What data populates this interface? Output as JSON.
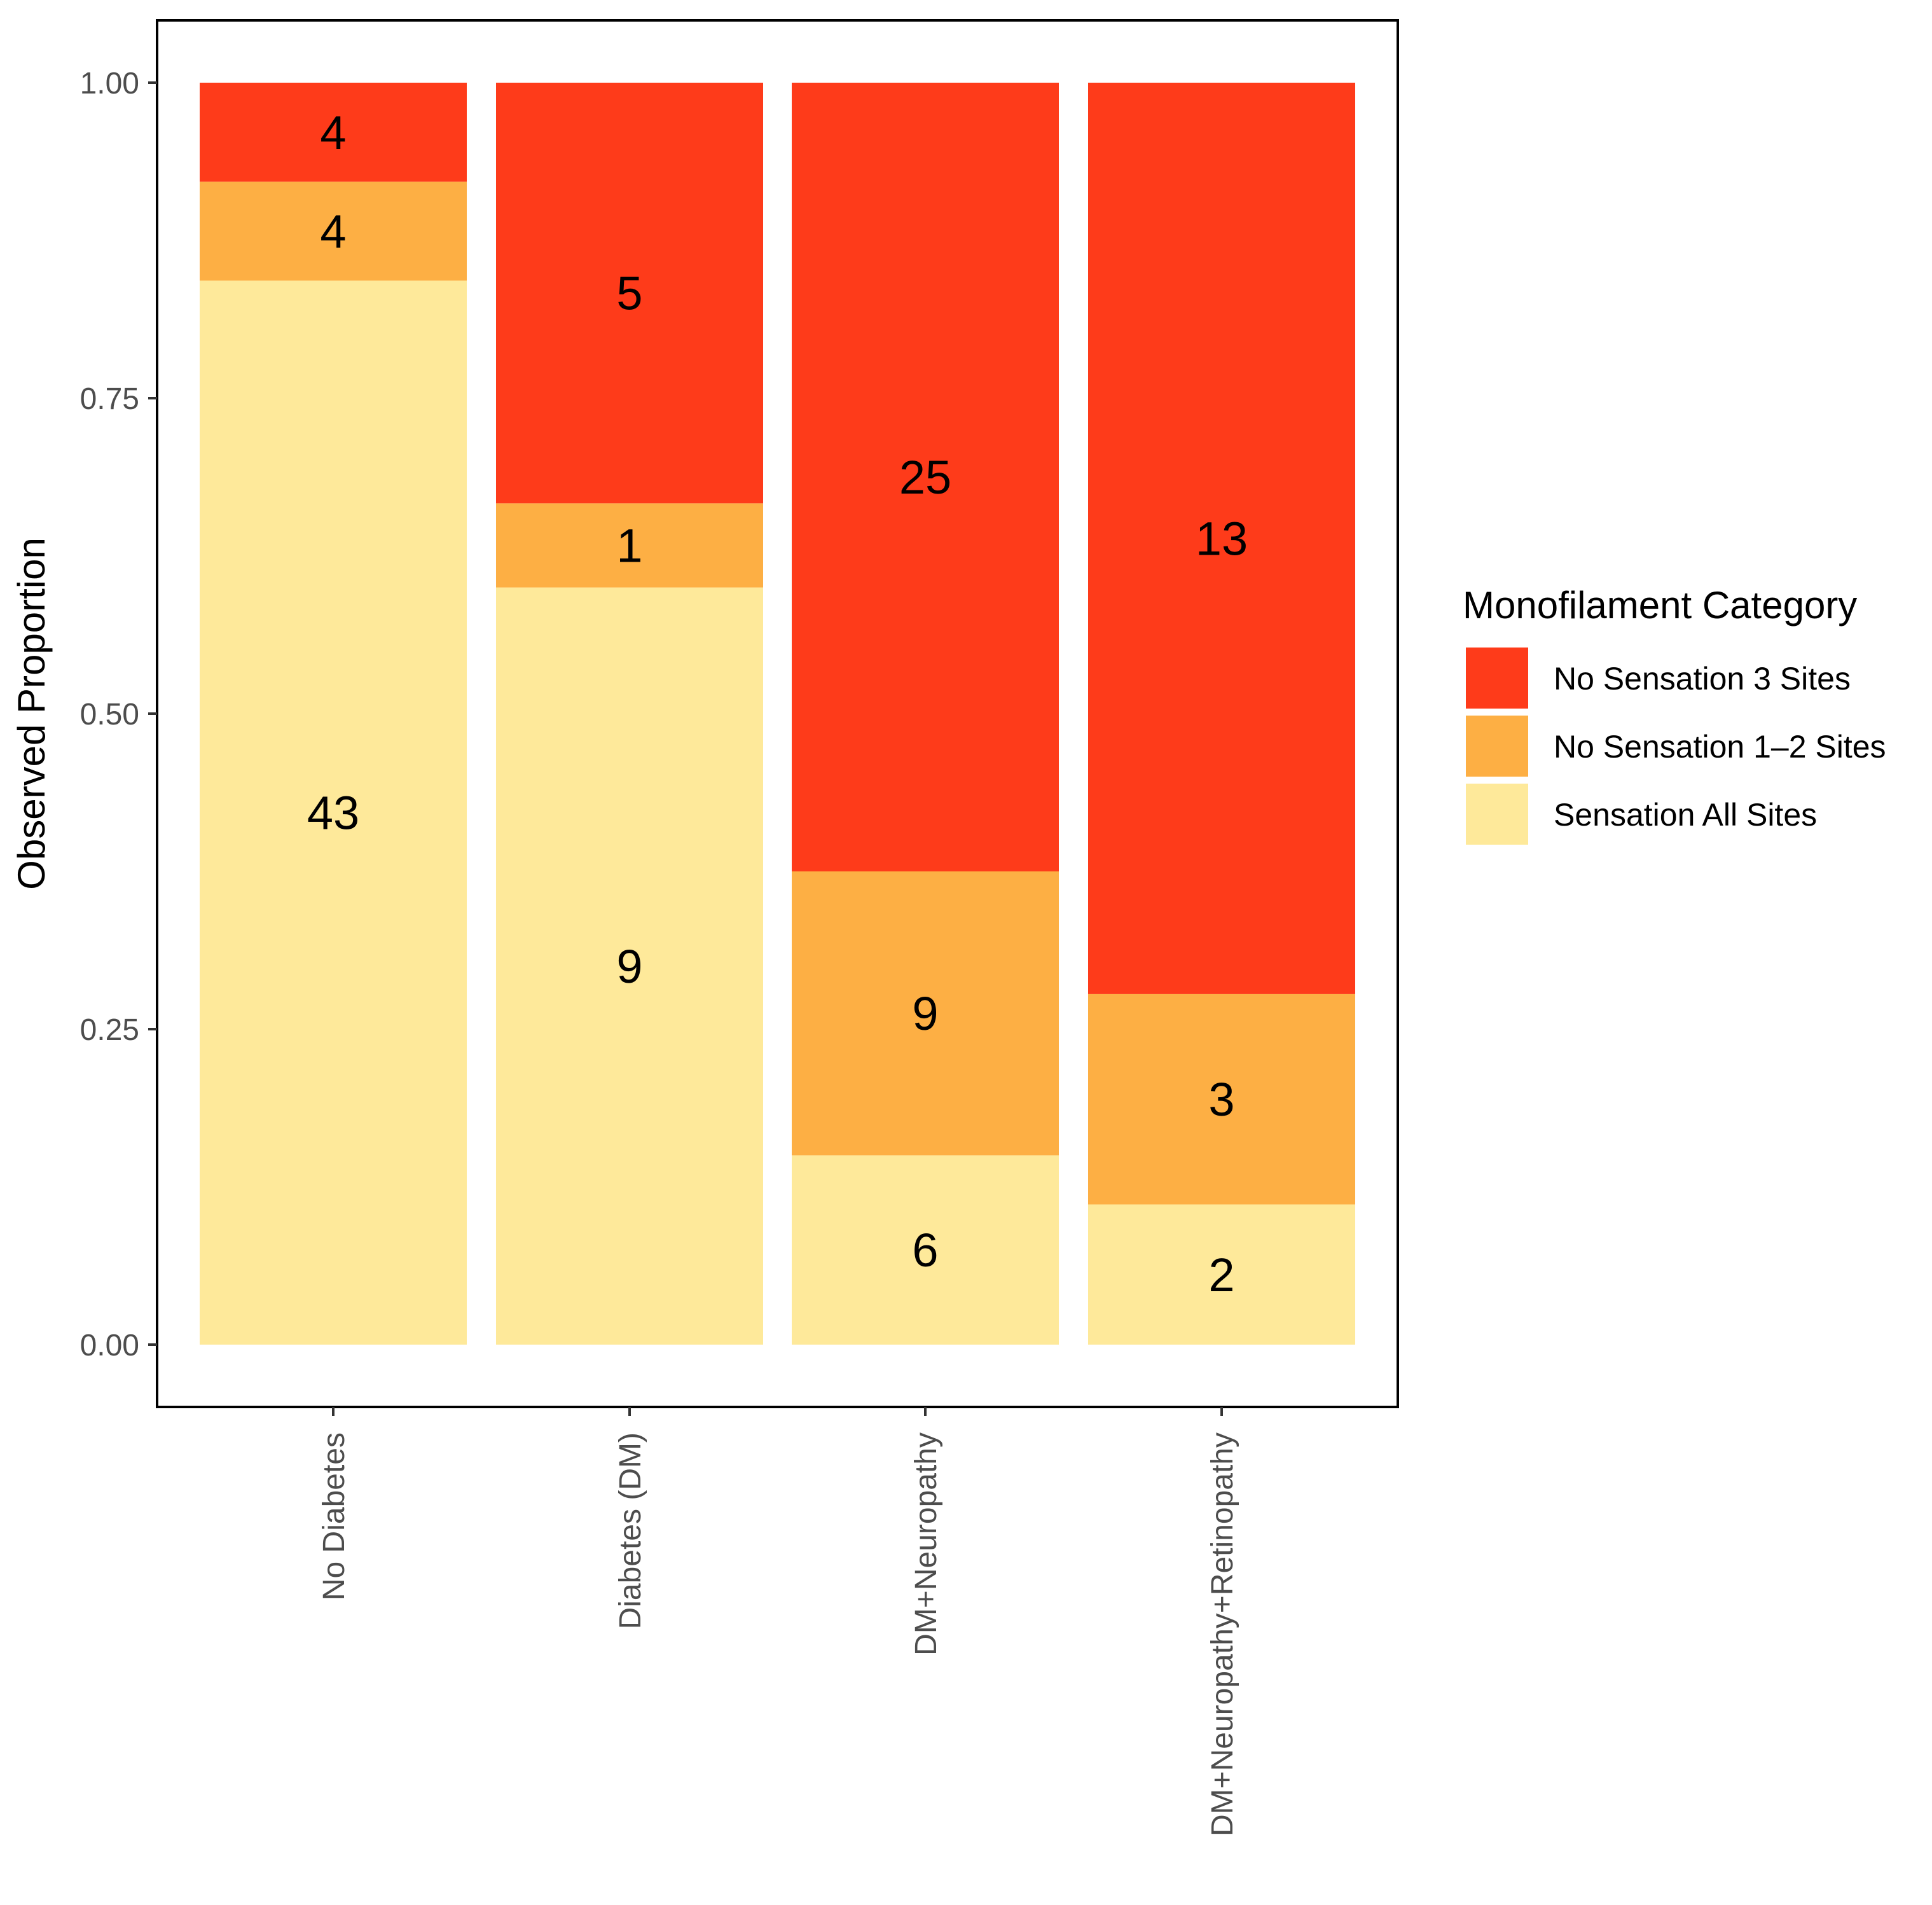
{
  "chart_data": {
    "type": "bar",
    "stacked": true,
    "normalized": true,
    "categories": [
      "No Diabetes",
      "Diabetes (DM)",
      "DM+Neuropathy",
      "DM+Neuropathy+Retinopathy"
    ],
    "series": [
      {
        "name": "Sensation All Sites",
        "color": "#FEE99A",
        "values": [
          43,
          9,
          6,
          2
        ]
      },
      {
        "name": "No Sensation 1–2 Sites",
        "color": "#FDAF44",
        "values": [
          4,
          1,
          9,
          3
        ]
      },
      {
        "name": "No Sensation 3 Sites",
        "color": "#FE3B1A",
        "values": [
          4,
          5,
          25,
          13
        ]
      }
    ],
    "title": "",
    "xlabel": "",
    "ylabel": "Observed Proportion",
    "ylim": [
      0,
      1
    ],
    "yticks": [
      "0.00",
      "0.25",
      "0.50",
      "0.75",
      "1.00"
    ],
    "grid": false,
    "legend_title": "Monofilament Category",
    "legend_order": [
      "No Sensation 3 Sites",
      "No Sensation 1–2 Sites",
      "Sensation All Sites"
    ],
    "legend_position": "right"
  }
}
